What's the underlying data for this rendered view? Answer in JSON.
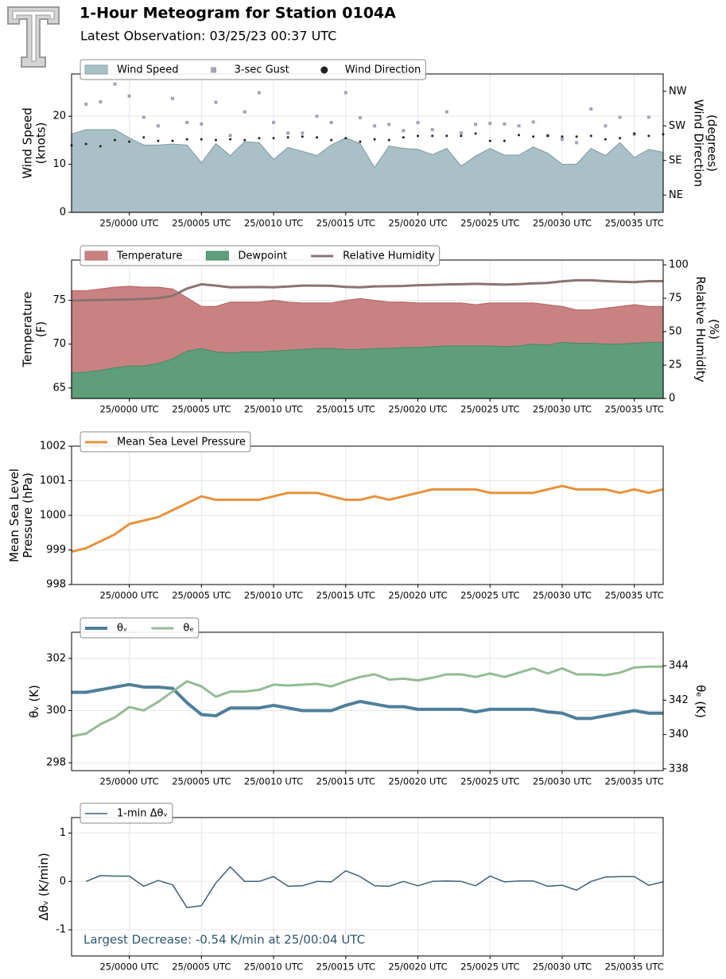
{
  "title": "1-Hour Meteogram for Station 0104A",
  "subtitle": "Latest Observation: 03/25/23 00:37 UTC",
  "chart_data": [
    {
      "type": "area",
      "ylabel": [
        "Wind Speed",
        "(knots)"
      ],
      "y2label": [
        "Wind Direction",
        "(degrees)"
      ],
      "grid": true,
      "legend": "top",
      "x": [
        -4,
        -3,
        -2,
        -1,
        0,
        1,
        2,
        3,
        4,
        5,
        6,
        7,
        8,
        9,
        10,
        11,
        12,
        13,
        14,
        15,
        16,
        17,
        18,
        19,
        20,
        21,
        22,
        23,
        24,
        25,
        26,
        27,
        28,
        29,
        30,
        31,
        32,
        33,
        34,
        35,
        36,
        37
      ],
      "xlim": [
        -4,
        37
      ],
      "xticks": [
        {
          "value": 0,
          "label": "25/0000 UTC"
        },
        {
          "value": 5,
          "label": "25/0005 UTC"
        },
        {
          "value": 10,
          "label": "25/0010 UTC"
        },
        {
          "value": 15,
          "label": "25/0015 UTC"
        },
        {
          "value": 20,
          "label": "25/0020 UTC"
        },
        {
          "value": 25,
          "label": "25/0025 UTC"
        },
        {
          "value": 30,
          "label": "25/0030 UTC"
        },
        {
          "value": 35,
          "label": "25/0035 UTC"
        }
      ],
      "ylim": [
        0,
        28.8
      ],
      "yticks": [
        0,
        10,
        20
      ],
      "y2lim": [
        0,
        360
      ],
      "y2ticks": [
        {
          "value": 45,
          "label": "NE"
        },
        {
          "value": 135,
          "label": "SE"
        },
        {
          "value": 225,
          "label": "SW"
        },
        {
          "value": 315,
          "label": "NW"
        }
      ],
      "series": [
        {
          "name": "Wind Speed",
          "type": "area",
          "color": "#a9c1c6",
          "edgecolor": "#86a2a8",
          "values": [
            16.3,
            17.2,
            17.2,
            17.2,
            15.5,
            14,
            14,
            14.2,
            14,
            10.3,
            14.3,
            11.8,
            14.7,
            14.5,
            11,
            13.5,
            12.7,
            11.8,
            14,
            15.5,
            14.3,
            9.3,
            13.8,
            13.3,
            13.1,
            12,
            13.3,
            9.6,
            11.7,
            13.3,
            11.9,
            11.9,
            13.6,
            12.3,
            10,
            10,
            13.3,
            11.8,
            14.5,
            11.4,
            13.1,
            12.5
          ]
        },
        {
          "name": "3-sec Gust",
          "type": "scatter",
          "marker": "square",
          "color": "#a3a3b6",
          "values": [
            null,
            22.5,
            23,
            26.7,
            24.2,
            19.8,
            18,
            23.7,
            18.7,
            18.4,
            22.9,
            16,
            20.9,
            24.9,
            18.7,
            16.5,
            16.5,
            20,
            18.7,
            24.9,
            19.7,
            18,
            18.3,
            17,
            18.7,
            17.2,
            20.9,
            16.5,
            18.3,
            18.5,
            18.4,
            18,
            18.8,
            16,
            15.2,
            14.5,
            21.5,
            18,
            19.8,
            16.2,
            19.8,
            null
          ]
        },
        {
          "name": "Wind Direction",
          "type": "scatter",
          "marker": "circle",
          "color": "#222222",
          "axis": "y2",
          "values": [
            174,
            178,
            172,
            188,
            184,
            195,
            186,
            186,
            190,
            190,
            188,
            190,
            188,
            193,
            193,
            195,
            197,
            195,
            188,
            193,
            184,
            190,
            188,
            195,
            199,
            199,
            199,
            199,
            205,
            186,
            186,
            201,
            197,
            199,
            197,
            197,
            199,
            190,
            193,
            205,
            199,
            203
          ]
        }
      ]
    },
    {
      "type": "area",
      "ylabel": [
        "Temperature",
        "(F)"
      ],
      "y2label": [
        "Relative Humidity",
        "(%)"
      ],
      "grid": true,
      "legend": "top",
      "x": [
        -4,
        -3,
        -2,
        -1,
        0,
        1,
        2,
        3,
        4,
        5,
        6,
        7,
        8,
        9,
        10,
        11,
        12,
        13,
        14,
        15,
        16,
        17,
        18,
        19,
        20,
        21,
        22,
        23,
        24,
        25,
        26,
        27,
        28,
        29,
        30,
        31,
        32,
        33,
        34,
        35,
        36,
        37
      ],
      "xlim": [
        -4,
        37
      ],
      "xticks": [
        {
          "value": 0,
          "label": "25/0000 UTC"
        },
        {
          "value": 5,
          "label": "25/0005 UTC"
        },
        {
          "value": 10,
          "label": "25/0010 UTC"
        },
        {
          "value": 15,
          "label": "25/0015 UTC"
        },
        {
          "value": 20,
          "label": "25/0020 UTC"
        },
        {
          "value": 25,
          "label": "25/0025 UTC"
        },
        {
          "value": 30,
          "label": "25/0030 UTC"
        },
        {
          "value": 35,
          "label": "25/0035 UTC"
        }
      ],
      "ylim": [
        63.8,
        79.6
      ],
      "yticks": [
        65,
        70,
        75
      ],
      "y2lim": [
        0,
        103.6
      ],
      "y2ticks": [
        0,
        25,
        50,
        75,
        100
      ],
      "series": [
        {
          "name": "Temperature",
          "type": "area",
          "color": "#c98282",
          "edgecolor": "#b86a6a",
          "values": [
            76.1,
            76.1,
            76.3,
            76.5,
            76.6,
            76.5,
            76.5,
            76.3,
            75.3,
            74.3,
            74.3,
            74.8,
            74.8,
            74.8,
            75.0,
            74.8,
            74.7,
            74.7,
            74.7,
            75.0,
            75.2,
            75.0,
            74.8,
            74.8,
            74.7,
            74.7,
            74.7,
            74.7,
            74.5,
            74.7,
            74.7,
            74.7,
            74.7,
            74.5,
            74.3,
            73.9,
            73.9,
            74.1,
            74.3,
            74.5,
            74.3,
            74.3
          ]
        },
        {
          "name": "Dewpoint",
          "type": "area",
          "color": "#5f9e7a",
          "edgecolor": "#4f8c69",
          "values": [
            66.7,
            66.8,
            67.0,
            67.3,
            67.5,
            67.5,
            67.8,
            68.3,
            69.2,
            69.5,
            69.1,
            69.0,
            69.1,
            69.1,
            69.2,
            69.3,
            69.4,
            69.5,
            69.5,
            69.4,
            69.4,
            69.5,
            69.5,
            69.6,
            69.6,
            69.7,
            69.8,
            69.8,
            69.8,
            69.8,
            69.7,
            69.8,
            70.0,
            69.9,
            70.2,
            70.1,
            70.1,
            70.0,
            70.0,
            70.1,
            70.2,
            70.2
          ]
        },
        {
          "name": "Relative Humidity",
          "type": "line",
          "color": "#8a7372",
          "width": 3,
          "axis": "y2",
          "values": [
            73.2,
            73.5,
            73.7,
            73.9,
            74.1,
            74.5,
            75.1,
            76.8,
            82.3,
            85.5,
            84.5,
            83.2,
            83.3,
            83.4,
            83.2,
            83.8,
            84.5,
            84.5,
            84.3,
            83.5,
            83.2,
            83.9,
            84.0,
            84.2,
            84.8,
            85.0,
            85.4,
            85.5,
            85.8,
            85.5,
            85.2,
            85.6,
            86.1,
            86.5,
            87.7,
            88.5,
            88.5,
            87.8,
            87.4,
            87.1,
            87.8,
            87.8
          ]
        }
      ]
    },
    {
      "type": "line",
      "ylabel": [
        "Mean Sea Level",
        "Pressure (hPa)"
      ],
      "grid": true,
      "legend": "top",
      "x": [
        -4,
        -3,
        -2,
        -1,
        0,
        1,
        2,
        3,
        4,
        5,
        6,
        7,
        8,
        9,
        10,
        11,
        12,
        13,
        14,
        15,
        16,
        17,
        18,
        19,
        20,
        21,
        22,
        23,
        24,
        25,
        26,
        27,
        28,
        29,
        30,
        31,
        32,
        33,
        34,
        35,
        36,
        37
      ],
      "xlim": [
        -4,
        37
      ],
      "xticks": [
        {
          "value": 0,
          "label": "25/0000 UTC"
        },
        {
          "value": 5,
          "label": "25/0005 UTC"
        },
        {
          "value": 10,
          "label": "25/0010 UTC"
        },
        {
          "value": 15,
          "label": "25/0015 UTC"
        },
        {
          "value": 20,
          "label": "25/0020 UTC"
        },
        {
          "value": 25,
          "label": "25/0025 UTC"
        },
        {
          "value": 30,
          "label": "25/0030 UTC"
        },
        {
          "value": 35,
          "label": "25/0035 UTC"
        }
      ],
      "ylim": [
        998,
        1002
      ],
      "yticks": [
        998,
        999,
        1000,
        1001,
        1002
      ],
      "series": [
        {
          "name": "Mean Sea Level Pressure",
          "type": "line",
          "color": "#e8913a",
          "width": 3,
          "values": [
            998.95,
            999.05,
            999.25,
            999.45,
            999.75,
            999.85,
            999.95,
            1000.15,
            1000.35,
            1000.55,
            1000.45,
            1000.45,
            1000.45,
            1000.45,
            1000.55,
            1000.65,
            1000.65,
            1000.65,
            1000.55,
            1000.45,
            1000.45,
            1000.55,
            1000.45,
            1000.55,
            1000.65,
            1000.75,
            1000.75,
            1000.75,
            1000.75,
            1000.65,
            1000.65,
            1000.65,
            1000.65,
            1000.75,
            1000.85,
            1000.75,
            1000.75,
            1000.75,
            1000.65,
            1000.75,
            1000.65,
            1000.75
          ]
        }
      ]
    },
    {
      "type": "line",
      "ylabel": [
        "θᵥ (K)"
      ],
      "y2label": [
        "θₑ (K)"
      ],
      "grid": true,
      "legend": "top",
      "x": [
        -4,
        -3,
        -2,
        -1,
        0,
        1,
        2,
        3,
        4,
        5,
        6,
        7,
        8,
        9,
        10,
        11,
        12,
        13,
        14,
        15,
        16,
        17,
        18,
        19,
        20,
        21,
        22,
        23,
        24,
        25,
        26,
        27,
        28,
        29,
        30,
        31,
        32,
        33,
        34,
        35,
        36,
        37
      ],
      "xlim": [
        -4,
        37
      ],
      "xticks": [
        {
          "value": 0,
          "label": "25/0000 UTC"
        },
        {
          "value": 5,
          "label": "25/0005 UTC"
        },
        {
          "value": 10,
          "label": "25/0010 UTC"
        },
        {
          "value": 15,
          "label": "25/0015 UTC"
        },
        {
          "value": 20,
          "label": "25/0020 UTC"
        },
        {
          "value": 25,
          "label": "25/0025 UTC"
        },
        {
          "value": 30,
          "label": "25/0030 UTC"
        },
        {
          "value": 35,
          "label": "25/0035 UTC"
        }
      ],
      "ylim": [
        297.7,
        303.0
      ],
      "yticks": [
        298,
        300,
        302
      ],
      "y2lim": [
        337.9,
        345.95
      ],
      "y2ticks": [
        338,
        340,
        342,
        344
      ],
      "series": [
        {
          "name": "θᵥ",
          "type": "line",
          "color": "#4e7f99",
          "width": 4,
          "values": [
            300.7,
            300.7,
            300.8,
            300.9,
            301.0,
            300.9,
            300.9,
            300.85,
            300.3,
            299.85,
            299.8,
            300.1,
            300.1,
            300.1,
            300.2,
            300.1,
            300.0,
            300.0,
            300.0,
            300.2,
            300.35,
            300.25,
            300.15,
            300.15,
            300.05,
            300.05,
            300.05,
            300.05,
            299.95,
            300.05,
            300.05,
            300.05,
            300.05,
            299.95,
            299.9,
            299.7,
            299.7,
            299.8,
            299.9,
            300.0,
            299.9,
            299.9
          ]
        },
        {
          "name": "θₑ",
          "type": "line",
          "color": "#94bb94",
          "width": 3,
          "axis": "y2",
          "values": [
            339.9,
            340.05,
            340.6,
            341.0,
            341.6,
            341.4,
            341.9,
            342.5,
            343.1,
            342.8,
            342.2,
            342.5,
            342.5,
            342.6,
            342.9,
            342.85,
            342.9,
            342.95,
            342.8,
            343.1,
            343.35,
            343.5,
            343.2,
            343.25,
            343.15,
            343.3,
            343.5,
            343.5,
            343.35,
            343.55,
            343.35,
            343.6,
            343.85,
            343.55,
            343.85,
            343.5,
            343.5,
            343.45,
            343.6,
            343.9,
            343.95,
            343.95
          ]
        }
      ]
    },
    {
      "type": "line",
      "ylabel": [
        "Δθᵥ (K/min)"
      ],
      "grid": true,
      "legend": "top",
      "annotation": "Largest Decrease: -0.54 K/min at 25/00:04 UTC",
      "x": [
        -4,
        -3,
        -2,
        -1,
        0,
        1,
        2,
        3,
        4,
        5,
        6,
        7,
        8,
        9,
        10,
        11,
        12,
        13,
        14,
        15,
        16,
        17,
        18,
        19,
        20,
        21,
        22,
        23,
        24,
        25,
        26,
        27,
        28,
        29,
        30,
        31,
        32,
        33,
        34,
        35,
        36,
        37
      ],
      "xlim": [
        -4,
        37
      ],
      "xticks": [
        {
          "value": 0,
          "label": "25/0000 UTC"
        },
        {
          "value": 5,
          "label": "25/0005 UTC"
        },
        {
          "value": 10,
          "label": "25/0010 UTC"
        },
        {
          "value": 15,
          "label": "25/0015 UTC"
        },
        {
          "value": 20,
          "label": "25/0020 UTC"
        },
        {
          "value": 25,
          "label": "25/0025 UTC"
        },
        {
          "value": 30,
          "label": "25/0030 UTC"
        },
        {
          "value": 35,
          "label": "25/0035 UTC"
        }
      ],
      "ylim": [
        -1.54,
        1.32
      ],
      "yticks": [
        -1,
        0,
        1
      ],
      "series": [
        {
          "name": "1-min Δθᵥ",
          "type": "line",
          "color": "#3c6178",
          "width": 1.5,
          "values": [
            null,
            0,
            0.12,
            0.11,
            0.11,
            -0.1,
            0.02,
            -0.07,
            -0.54,
            -0.5,
            -0.03,
            0.3,
            0,
            0,
            0.1,
            -0.1,
            -0.09,
            0,
            -0.01,
            0.22,
            0.1,
            -0.09,
            -0.1,
            0,
            -0.09,
            0,
            0.01,
            0,
            -0.09,
            0.11,
            -0.01,
            0.01,
            0.01,
            -0.1,
            -0.08,
            -0.18,
            0,
            0.09,
            0.1,
            0.1,
            -0.08,
            -0.01
          ]
        }
      ]
    }
  ]
}
